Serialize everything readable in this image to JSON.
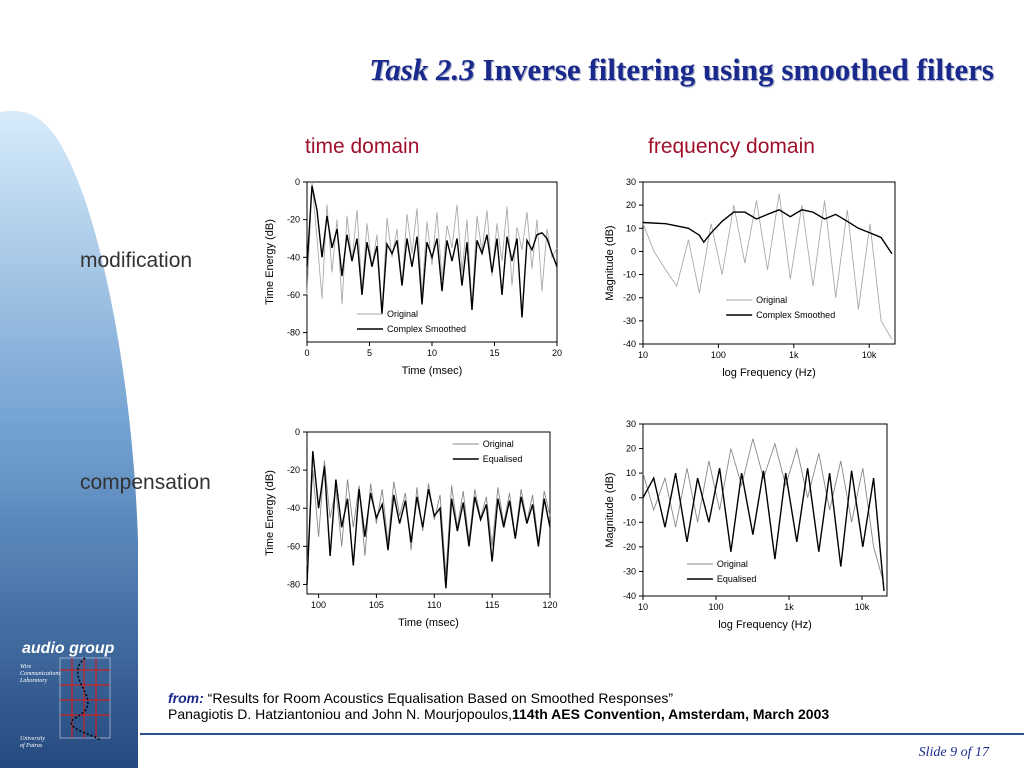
{
  "title": {
    "task": "Task 2.3",
    "main": "Inverse filtering using smoothed filters"
  },
  "columns": {
    "time": "time domain",
    "freq": "frequency domain"
  },
  "rows": {
    "modification": "modification",
    "compensation": "compensation"
  },
  "logo": {
    "name": "audio group",
    "lab": [
      "Wire",
      "Communications",
      "Laboratory"
    ],
    "univ": [
      "University",
      "of Patras"
    ]
  },
  "citation": {
    "from": "from:",
    "quote": "“Results for Room Acoustics Equalisation Based on Smoothed Responses”",
    "authors": "Panagiotis D. Hatziantoniou and John N. Mourjopoulos,",
    "conference": "114th AES Convention, Amsterdam, March 2003"
  },
  "footer": {
    "slide": "Slide 9 of 17"
  },
  "colors": {
    "title": "#1a2a8c",
    "heading": "#a0102a",
    "sidebar_top": "#cfe3f7",
    "sidebar_bottom": "#2b4f8f"
  },
  "chart_data": [
    {
      "id": "mod-time",
      "type": "line",
      "title": "",
      "xlabel": "Time (msec)",
      "ylabel": "Time Energy (dB)",
      "xlim": [
        0,
        20
      ],
      "ylim": [
        -85,
        0
      ],
      "xticks": [
        0,
        5,
        10,
        15,
        20
      ],
      "yticks": [
        0,
        -20,
        -40,
        -60,
        -80
      ],
      "legend": "bottom-center",
      "series": [
        {
          "name": "Original",
          "color": "#aaaaaa",
          "x": [
            0,
            0.4,
            0.8,
            1.2,
            1.6,
            2,
            2.4,
            2.8,
            3.2,
            3.6,
            4,
            4.4,
            4.8,
            5.2,
            5.6,
            6,
            6.4,
            6.8,
            7.2,
            7.6,
            8,
            8.4,
            8.8,
            9.2,
            9.6,
            10,
            10.4,
            10.8,
            11.2,
            11.6,
            12,
            12.4,
            12.8,
            13.2,
            13.6,
            14,
            14.4,
            14.8,
            15.2,
            15.6,
            16,
            16.4,
            16.8,
            17.2,
            17.6,
            18,
            18.4,
            18.8,
            19.2,
            19.6,
            20
          ],
          "y": [
            -60,
            0,
            -30,
            -62,
            -12,
            -48,
            -20,
            -65,
            -18,
            -42,
            -15,
            -58,
            -22,
            -45,
            -28,
            -70,
            -19,
            -40,
            -25,
            -55,
            -17,
            -38,
            -14,
            -60,
            -21,
            -44,
            -16,
            -52,
            -23,
            -35,
            -12,
            -48,
            -20,
            -66,
            -18,
            -37,
            -15,
            -50,
            -22,
            -42,
            -13,
            -55,
            -24,
            -36,
            -16,
            -46,
            -20,
            -58,
            -25,
            -40,
            -35
          ]
        },
        {
          "name": "Complex Smoothed",
          "color": "#000000",
          "x": [
            0,
            0.4,
            0.8,
            1.2,
            1.6,
            2,
            2.4,
            2.8,
            3.2,
            3.6,
            4,
            4.4,
            4.8,
            5.2,
            5.6,
            6,
            6.4,
            6.8,
            7.2,
            7.6,
            8,
            8.4,
            8.8,
            9.2,
            9.6,
            10,
            10.4,
            10.8,
            11.2,
            11.6,
            12,
            12.4,
            12.8,
            13.2,
            13.6,
            14,
            14.4,
            14.8,
            15.2,
            15.6,
            16,
            16.4,
            16.8,
            17.2,
            17.6,
            18,
            18.4,
            18.8,
            19.2,
            19.6,
            20
          ],
          "y": [
            -45,
            -2,
            -15,
            -40,
            -18,
            -35,
            -25,
            -50,
            -28,
            -42,
            -30,
            -60,
            -32,
            -45,
            -34,
            -70,
            -33,
            -38,
            -31,
            -55,
            -30,
            -45,
            -29,
            -65,
            -32,
            -40,
            -30,
            -58,
            -31,
            -42,
            -30,
            -55,
            -32,
            -68,
            -31,
            -38,
            -28,
            -48,
            -30,
            -60,
            -29,
            -42,
            -30,
            -72,
            -31,
            -36,
            -28,
            -27,
            -30,
            -38,
            -45
          ]
        }
      ]
    },
    {
      "id": "mod-freq",
      "type": "line",
      "title": "",
      "xlabel": "log Frequency (Hz)",
      "ylabel": "Magnitude (dB)",
      "xscale": "log",
      "xlim": [
        10,
        22000
      ],
      "ylim": [
        -40,
        30
      ],
      "xticks": [
        10,
        100,
        1000,
        10000
      ],
      "xtick_labels": [
        "10",
        "100",
        "1k",
        "10k"
      ],
      "yticks": [
        30,
        20,
        10,
        0,
        -10,
        -20,
        -30,
        -40
      ],
      "legend": "bottom-right",
      "series": [
        {
          "name": "Original",
          "color": "#aaaaaa",
          "x": [
            10,
            14,
            20,
            28,
            40,
            56,
            80,
            112,
            160,
            224,
            320,
            448,
            640,
            900,
            1280,
            1800,
            2560,
            3600,
            5120,
            7200,
            10240,
            14400,
            20000
          ],
          "y": [
            12,
            0,
            -8,
            -15,
            5,
            -18,
            12,
            -10,
            20,
            -5,
            22,
            -8,
            25,
            -12,
            20,
            -15,
            22,
            -20,
            18,
            -25,
            12,
            -30,
            -38
          ]
        },
        {
          "name": "Complex Smoothed",
          "color": "#000000",
          "x": [
            10,
            20,
            40,
            56,
            64,
            80,
            112,
            160,
            224,
            320,
            448,
            640,
            900,
            1280,
            1800,
            2560,
            3600,
            5120,
            7200,
            10240,
            14400,
            20000
          ],
          "y": [
            12.5,
            12,
            10,
            7,
            4,
            8,
            13,
            17,
            17,
            14,
            16,
            18,
            15,
            18,
            17,
            14,
            16,
            13,
            10,
            8,
            6,
            -1
          ]
        }
      ]
    },
    {
      "id": "comp-time",
      "type": "line",
      "title": "",
      "xlabel": "Time (msec)",
      "ylabel": "Time Energy (dB)",
      "xlim": [
        99,
        120
      ],
      "ylim": [
        -85,
        0
      ],
      "xticks": [
        100,
        105,
        110,
        115,
        120
      ],
      "yticks": [
        0,
        -20,
        -40,
        -60,
        -80
      ],
      "legend": "top-right",
      "series": [
        {
          "name": "Original",
          "color": "#888888",
          "x": [
            99,
            99.5,
            100,
            100.5,
            101,
            101.5,
            102,
            102.5,
            103,
            103.5,
            104,
            104.5,
            105,
            105.5,
            106,
            106.5,
            107,
            107.5,
            108,
            108.5,
            109,
            109.5,
            110,
            110.5,
            111,
            111.5,
            112,
            112.5,
            113,
            113.5,
            114,
            114.5,
            115,
            115.5,
            116,
            116.5,
            117,
            117.5,
            118,
            118.5,
            119,
            119.5,
            120
          ],
          "y": [
            -70,
            -20,
            -55,
            -15,
            -45,
            -30,
            -60,
            -25,
            -50,
            -28,
            -65,
            -27,
            -48,
            -30,
            -58,
            -26,
            -44,
            -32,
            -62,
            -29,
            -52,
            -27,
            -46,
            -33,
            -75,
            -28,
            -50,
            -31,
            -57,
            -30,
            -45,
            -34,
            -60,
            -29,
            -48,
            -32,
            -55,
            -30,
            -47,
            -33,
            -58,
            -31,
            -44
          ]
        },
        {
          "name": "Equalised",
          "color": "#000000",
          "x": [
            99,
            99.5,
            100,
            100.5,
            101,
            101.5,
            102,
            102.5,
            103,
            103.5,
            104,
            104.5,
            105,
            105.5,
            106,
            106.5,
            107,
            107.5,
            108,
            108.5,
            109,
            109.5,
            110,
            110.5,
            111,
            111.5,
            112,
            112.5,
            113,
            113.5,
            114,
            114.5,
            115,
            115.5,
            116,
            116.5,
            117,
            117.5,
            118,
            118.5,
            119,
            119.5,
            120
          ],
          "y": [
            -80,
            -10,
            -40,
            -18,
            -65,
            -25,
            -50,
            -35,
            -70,
            -30,
            -55,
            -32,
            -45,
            -38,
            -62,
            -33,
            -48,
            -36,
            -58,
            -34,
            -50,
            -30,
            -44,
            -40,
            -82,
            -35,
            -52,
            -37,
            -60,
            -34,
            -46,
            -38,
            -68,
            -35,
            -50,
            -36,
            -56,
            -34,
            -48,
            -38,
            -60,
            -35,
            -50
          ]
        }
      ]
    },
    {
      "id": "comp-freq",
      "type": "line",
      "title": "",
      "xlabel": "log Frequency (Hz)",
      "ylabel": "Magnitude (dB)",
      "xscale": "log",
      "xlim": [
        10,
        22000
      ],
      "ylim": [
        -40,
        30
      ],
      "xticks": [
        10,
        100,
        1000,
        10000
      ],
      "xtick_labels": [
        "10",
        "100",
        "1k",
        "10k"
      ],
      "yticks": [
        30,
        20,
        10,
        0,
        -10,
        -20,
        -30,
        -40
      ],
      "legend": "bottom-left",
      "series": [
        {
          "name": "Original",
          "color": "#888888",
          "x": [
            10,
            14,
            20,
            28,
            40,
            56,
            80,
            112,
            160,
            224,
            320,
            448,
            640,
            900,
            1280,
            1800,
            2560,
            3600,
            5120,
            7200,
            10240,
            14400,
            20000
          ],
          "y": [
            10,
            -5,
            8,
            -12,
            12,
            -10,
            15,
            -5,
            20,
            5,
            24,
            8,
            22,
            5,
            20,
            0,
            18,
            -5,
            15,
            -10,
            12,
            -20,
            -35
          ]
        },
        {
          "name": "Equalised",
          "color": "#000000",
          "x": [
            10,
            14,
            20,
            28,
            40,
            56,
            80,
            112,
            160,
            224,
            320,
            448,
            640,
            900,
            1280,
            1800,
            2560,
            3600,
            5120,
            7200,
            10240,
            14400,
            20000
          ],
          "y": [
            0,
            8,
            -12,
            10,
            -18,
            8,
            -10,
            12,
            -22,
            10,
            -15,
            11,
            -25,
            10,
            -18,
            12,
            -22,
            10,
            -28,
            11,
            -20,
            8,
            -38
          ]
        }
      ]
    }
  ]
}
